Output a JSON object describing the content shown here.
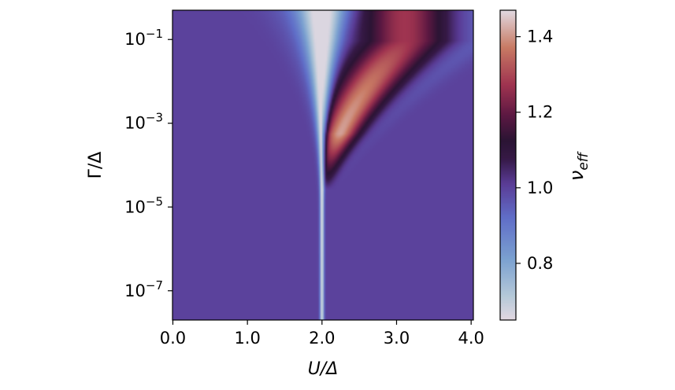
{
  "chart_data": {
    "type": "heatmap",
    "title": "",
    "xlabel": "U/Δ",
    "ylabel": "Γ/Δ",
    "x_scale": "linear",
    "y_scale": "log",
    "xlim": [
      0.0,
      4.0
    ],
    "ylim": [
      2e-08,
      0.5
    ],
    "x_ticks": [
      {
        "value": 0.0,
        "label": "0.0"
      },
      {
        "value": 1.0,
        "label": "1.0"
      },
      {
        "value": 2.0,
        "label": "2.0"
      },
      {
        "value": 3.0,
        "label": "3.0"
      },
      {
        "value": 4.0,
        "label": "4.0"
      }
    ],
    "y_ticks": [
      {
        "value": 0.1,
        "base": "10",
        "exp": "−1"
      },
      {
        "value": 0.001,
        "base": "10",
        "exp": "−3"
      },
      {
        "value": 1e-05,
        "base": "10",
        "exp": "−5"
      },
      {
        "value": 1e-07,
        "base": "10",
        "exp": "−7"
      }
    ],
    "colorbar": {
      "label_base": "ν",
      "label_sub": "eff",
      "colormap": "twilight_shifted",
      "clim": [
        0.65,
        1.47
      ],
      "ticks": [
        {
          "value": 0.8,
          "label": "0.8"
        },
        {
          "value": 1.0,
          "label": "1.0"
        },
        {
          "value": 1.2,
          "label": "1.2"
        },
        {
          "value": 1.4,
          "label": "1.4"
        }
      ]
    },
    "field": {
      "description_values": "ν_eff ≈ 1.0 background; low (≈0.65–0.8) along U/Δ = 2.0 line widening as Γ/Δ grows; high (up to ≈1.45) ridge for U/Δ > 2 near Γ/Δ ≈ 1e-3–1e-1",
      "background": 1.0,
      "center_x": 2.0,
      "min_value": 0.66,
      "max_value": 1.45
    }
  }
}
